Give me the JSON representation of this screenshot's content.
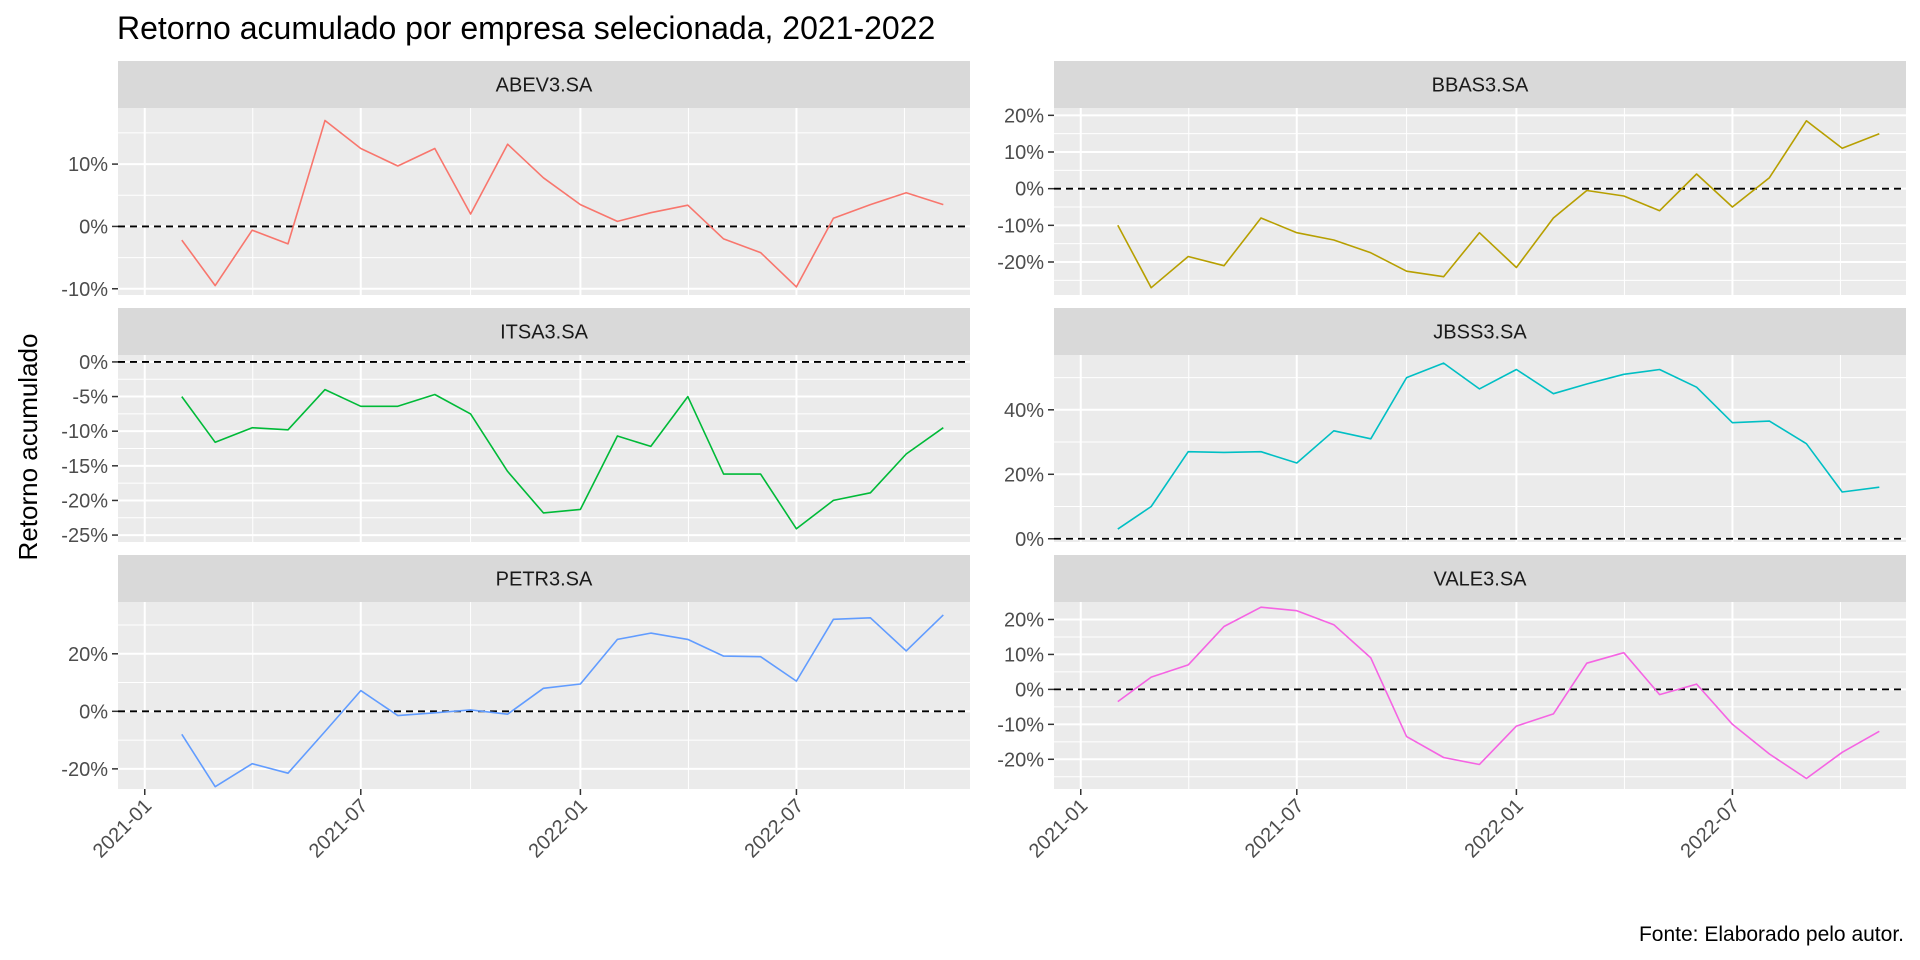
{
  "chart_data": {
    "type": "line",
    "title": "Retorno acumulado por empresa selecionada, 2021-2022",
    "xlabel": "",
    "ylabel": "Retorno acumulado",
    "caption": "Fonte: Elaborado pelo autor.",
    "x": [
      "2021-02-01",
      "2021-03-01",
      "2021-04-01",
      "2021-05-01",
      "2021-06-01",
      "2021-07-01",
      "2021-08-01",
      "2021-09-01",
      "2021-10-01",
      "2021-11-01",
      "2021-12-01",
      "2022-01-01",
      "2022-02-01",
      "2022-03-01",
      "2022-04-01",
      "2022-05-01",
      "2022-06-01",
      "2022-07-01",
      "2022-08-01",
      "2022-09-01",
      "2022-10-01",
      "2022-11-01"
    ],
    "x_ticks": [
      "2021-01",
      "2021-07",
      "2022-01",
      "2022-07"
    ],
    "reference_line": 0,
    "reference_line_style": "dashed",
    "panels": [
      {
        "name": "ABEV3.SA",
        "color": "#F8766D",
        "ylim": [
          -0.11,
          0.19
        ],
        "y_ticks": [
          -0.1,
          0,
          0.1
        ],
        "y_tick_labels": [
          "-10%",
          "0%",
          "10%"
        ],
        "values": [
          -0.022,
          -0.095,
          -0.006,
          -0.028,
          0.17,
          0.125,
          0.097,
          0.125,
          0.02,
          0.132,
          0.078,
          0.035,
          0.008,
          0.022,
          0.034,
          -0.02,
          -0.042,
          -0.097,
          0.013,
          0.035,
          0.054,
          0.035
        ]
      },
      {
        "name": "BBAS3.SA",
        "color": "#B79F00",
        "ylim": [
          -0.29,
          0.22
        ],
        "y_ticks": [
          -0.2,
          -0.1,
          0,
          0.1,
          0.2
        ],
        "y_tick_labels": [
          "-20%",
          "-10%",
          "0%",
          "10%",
          "20%"
        ],
        "values": [
          -0.1,
          -0.27,
          -0.185,
          -0.21,
          -0.08,
          -0.12,
          -0.14,
          -0.175,
          -0.225,
          -0.24,
          -0.12,
          -0.215,
          -0.08,
          -0.005,
          -0.02,
          -0.06,
          0.04,
          -0.05,
          0.03,
          0.185,
          0.11,
          0.15
        ]
      },
      {
        "name": "ITSA3.SA",
        "color": "#00BA38",
        "ylim": [
          -0.26,
          0.01
        ],
        "y_ticks": [
          -0.25,
          -0.2,
          -0.15,
          -0.1,
          -0.05,
          0
        ],
        "y_tick_labels": [
          "-25%",
          "-20%",
          "-15%",
          "-10%",
          "-5%",
          "0%"
        ],
        "values": [
          -0.05,
          -0.116,
          -0.095,
          -0.098,
          -0.04,
          -0.064,
          -0.064,
          -0.047,
          -0.075,
          -0.158,
          -0.218,
          -0.213,
          -0.107,
          -0.122,
          -0.05,
          -0.162,
          -0.162,
          -0.241,
          -0.2,
          -0.189,
          -0.133,
          -0.095
        ]
      },
      {
        "name": "JBSS3.SA",
        "color": "#00BFC4",
        "ylim": [
          -0.01,
          0.57
        ],
        "y_ticks": [
          0,
          0.2,
          0.4
        ],
        "y_tick_labels": [
          "0%",
          "20%",
          "40%"
        ],
        "values": [
          0.03,
          0.1,
          0.27,
          0.268,
          0.27,
          0.235,
          0.335,
          0.31,
          0.5,
          0.545,
          0.465,
          0.525,
          0.45,
          0.48,
          0.51,
          0.525,
          0.47,
          0.36,
          0.365,
          0.295,
          0.145,
          0.16
        ]
      },
      {
        "name": "PETR3.SA",
        "color": "#619CFF",
        "ylim": [
          -0.27,
          0.38
        ],
        "y_ticks": [
          -0.2,
          0,
          0.2
        ],
        "y_tick_labels": [
          "-20%",
          "0%",
          "20%"
        ],
        "values": [
          -0.08,
          -0.262,
          -0.182,
          -0.215,
          -0.07,
          0.072,
          -0.015,
          -0.005,
          0.005,
          -0.01,
          0.08,
          0.095,
          0.25,
          0.272,
          0.25,
          0.192,
          0.19,
          0.105,
          0.32,
          0.325,
          0.21,
          0.335
        ]
      },
      {
        "name": "VALE3.SA",
        "color": "#F564E3",
        "ylim": [
          -0.285,
          0.25
        ],
        "y_ticks": [
          -0.2,
          -0.1,
          0,
          0.1,
          0.2
        ],
        "y_tick_labels": [
          "-20%",
          "-10%",
          "0%",
          "10%",
          "20%"
        ],
        "values": [
          -0.035,
          0.035,
          0.07,
          0.18,
          0.235,
          0.225,
          0.185,
          0.09,
          -0.135,
          -0.195,
          -0.215,
          -0.105,
          -0.07,
          0.075,
          0.105,
          -0.015,
          0.015,
          -0.1,
          -0.185,
          -0.255,
          -0.18,
          -0.12
        ]
      }
    ]
  }
}
